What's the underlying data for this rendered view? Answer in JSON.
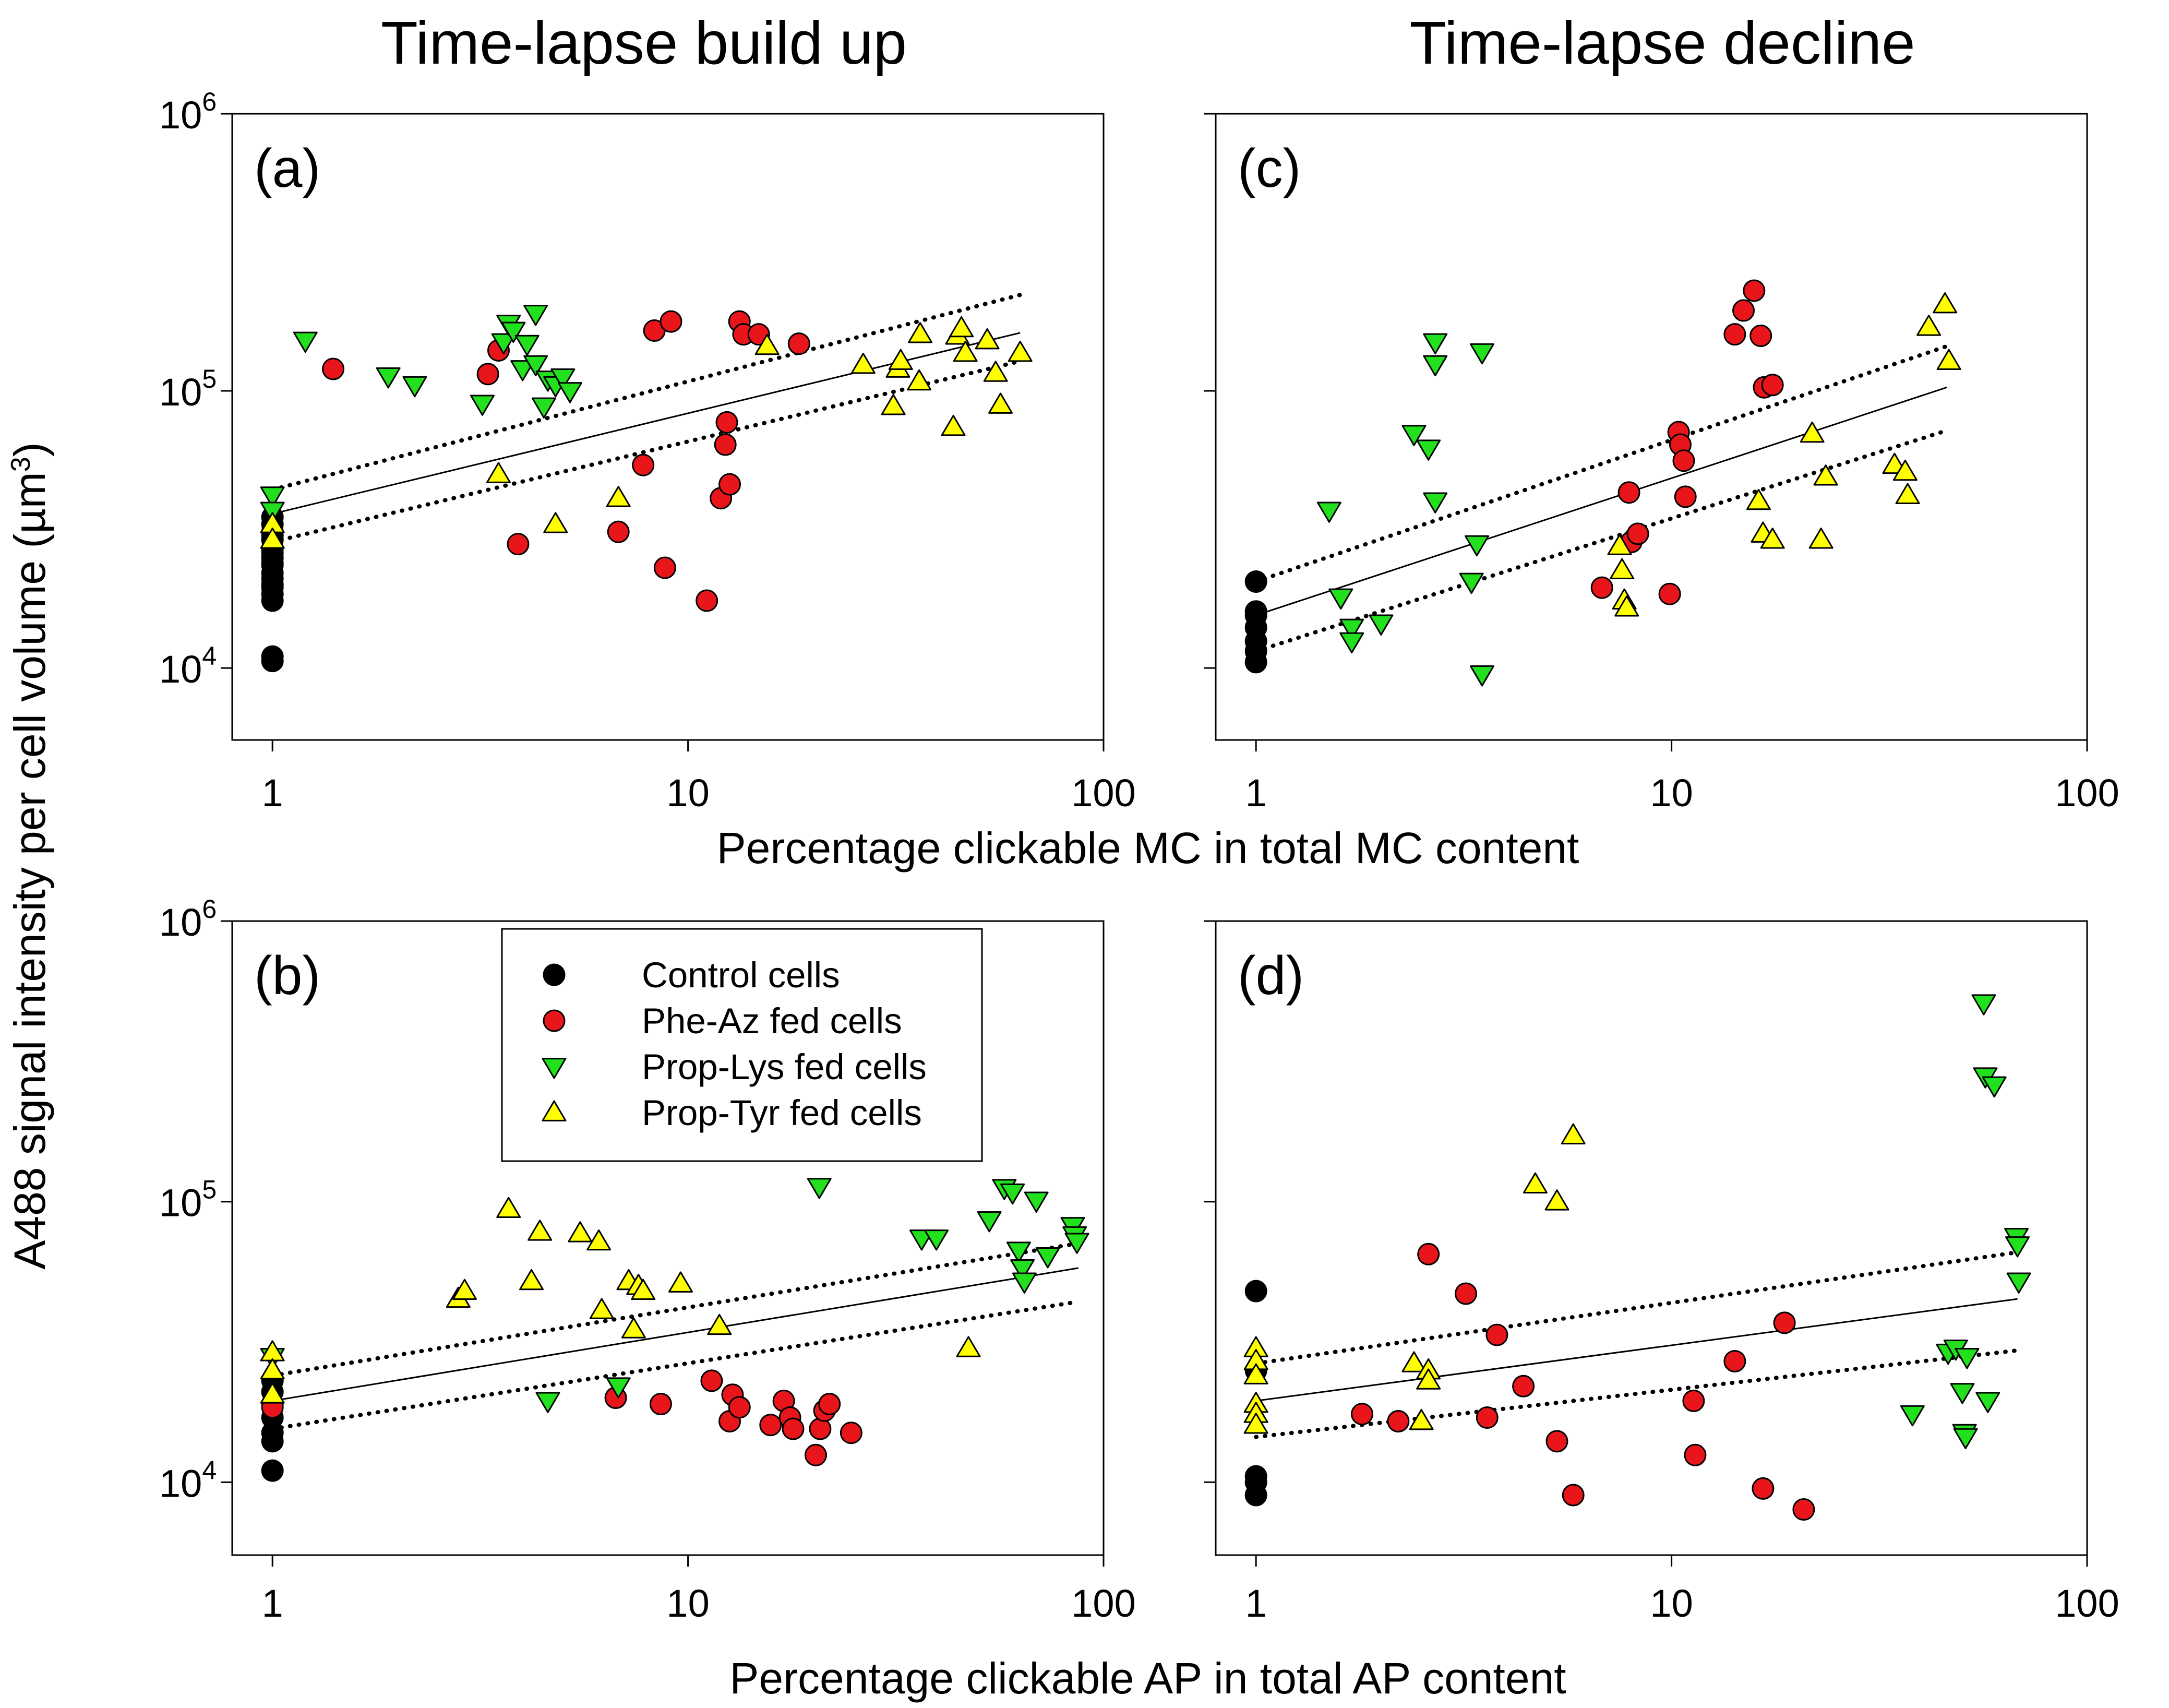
{
  "figure": {
    "column_titles": [
      "Time-lapse build up",
      "Time-lapse decline"
    ],
    "y_axis_label": "A488 signal intensity per cell volume (µm",
    "y_axis_label_sup": "3",
    "y_axis_label_end": ")",
    "x_axis_label_top": "Percentage clickable MC in total MC content",
    "x_axis_label_bottom": "Percentage clickable AP in total AP content",
    "x_tick_labels": [
      "1",
      "10",
      "100"
    ],
    "y_tick_bases": [
      "10",
      "10",
      "10"
    ],
    "y_tick_exponents": [
      "4",
      "5",
      "6"
    ]
  },
  "legend": {
    "items": [
      {
        "label": "Control cells",
        "color": "#000000",
        "marker": "circle"
      },
      {
        "label": "Phe-Az fed cells",
        "color": "#e8161b",
        "marker": "circle"
      },
      {
        "label": "Prop-Lys fed cells",
        "color": "#22e01d",
        "marker": "triangle-down"
      },
      {
        "label": "Prop-Tyr fed cells",
        "color": "#ffff00",
        "marker": "triangle-up"
      }
    ]
  },
  "chart_data": [
    {
      "panel": "(a)",
      "type": "scatter",
      "xscale": "log",
      "yscale": "log",
      "xlim": [
        0.8,
        100
      ],
      "ylim": [
        5500,
        1000000
      ],
      "fit": {
        "x": [
          1,
          63
        ],
        "y": [
          36000,
          162000
        ],
        "ci_low": [
          28500,
          128000
        ],
        "ci_high": [
          44000,
          222000
        ]
      },
      "series": [
        {
          "name": "Control cells",
          "x": [
            1,
            1,
            1,
            1,
            1,
            1,
            1,
            1,
            1,
            1,
            1,
            1,
            1,
            1,
            1,
            1,
            1,
            1
          ],
          "y": [
            11000,
            10600,
            17500,
            18500,
            19500,
            21000,
            22000,
            23500,
            25000,
            27000,
            29000,
            31000,
            33000,
            35000,
            20000,
            24000,
            26000,
            30000
          ]
        },
        {
          "name": "Phe-Az fed cells",
          "x": [
            1.4,
            3.3,
            3.5,
            3.9,
            7.8,
            6.8,
            8.3,
            8.8,
            9.1,
            11.1,
            12.0,
            12.3,
            12.4,
            12.6,
            13.3,
            13.6,
            14.8,
            18.5
          ],
          "y": [
            120000,
            115000,
            140000,
            28000,
            54000,
            31000,
            165000,
            23000,
            178000,
            17500,
            41000,
            64000,
            77000,
            46000,
            178000,
            160000,
            160000,
            148000
          ]
        },
        {
          "name": "Prop-Lys fed cells",
          "x": [
            1,
            1,
            1.2,
            1.9,
            2.2,
            3.2,
            3.6,
            3.7,
            4.0,
            4.3,
            4.3,
            4.5,
            4.6,
            4.8,
            5.0,
            5.2,
            3.8,
            4.1
          ],
          "y": [
            42000,
            37000,
            152000,
            113000,
            105000,
            90000,
            150000,
            175000,
            120000,
            190000,
            125000,
            88000,
            110000,
            105000,
            112000,
            100000,
            165000,
            148000
          ]
        },
        {
          "name": "Prop-Tyr fed cells",
          "x": [
            1,
            1,
            3.5,
            4.8,
            6.8,
            15.5,
            26.4,
            31.2,
            32.0,
            32.5,
            36.0,
            36.2,
            43.5,
            44.5,
            45.5,
            46.5,
            52.5,
            55.0,
            56.5,
            63.0
          ],
          "y": [
            33000,
            29000,
            50000,
            33000,
            41000,
            145000,
            124000,
            88000,
            120000,
            128000,
            108000,
            160000,
            74000,
            158000,
            168000,
            137000,
            152000,
            116000,
            89000,
            137000
          ]
        }
      ]
    },
    {
      "panel": "(b)",
      "type": "scatter",
      "xscale": "log",
      "yscale": "log",
      "xlim": [
        0.8,
        100
      ],
      "ylim": [
        5500,
        1000000
      ],
      "fit": {
        "x": [
          1,
          87
        ],
        "y": [
          19500,
          58000
        ],
        "ci_low": [
          15500,
          44000
        ],
        "ci_high": [
          24000,
          71000
        ]
      },
      "series": [
        {
          "name": "Control cells",
          "x": [
            1,
            1,
            1,
            1,
            1,
            1,
            1
          ],
          "y": [
            11000,
            14000,
            15000,
            17000,
            19000,
            21000,
            23000
          ]
        },
        {
          "name": "Phe-Az fed cells",
          "x": [
            1,
            6.7,
            8.6,
            11.4,
            12.6,
            12.8,
            13.3,
            15.8,
            17.0,
            17.6,
            17.9,
            20.3,
            20.8,
            21.3,
            21.9,
            24.7
          ],
          "y": [
            18500,
            20000,
            19000,
            23000,
            16500,
            20500,
            18500,
            16000,
            19500,
            17000,
            15500,
            12500,
            15500,
            18000,
            19000,
            15000
          ]
        },
        {
          "name": "Prop-Lys fed cells",
          "x": [
            1,
            4.6,
            6.8,
            20.7,
            36.5,
            39.6,
            53.1,
            57.7,
            60.4,
            62.5,
            63.8,
            64.5,
            68.9,
            73.4,
            84.3,
            85.2,
            86.3
          ],
          "y": [
            28000,
            19500,
            22000,
            113000,
            74000,
            74000,
            86000,
            112000,
            108000,
            67000,
            58000,
            52000,
            101000,
            64000,
            82000,
            76000,
            72000
          ]
        },
        {
          "name": "Prop-Tyr fed cells",
          "x": [
            1,
            1,
            1,
            2.8,
            2.9,
            3.7,
            4.2,
            4.4,
            5.5,
            6.1,
            6.2,
            7.2,
            7.4,
            7.6,
            7.8,
            9.6,
            11.9,
            47.3
          ],
          "y": [
            29000,
            25000,
            20500,
            45000,
            48000,
            94000,
            52000,
            78000,
            77000,
            72000,
            41000,
            52000,
            35000,
            50000,
            48000,
            51000,
            36000,
            30000
          ]
        }
      ]
    },
    {
      "panel": "(c)",
      "type": "scatter",
      "xscale": "log",
      "yscale": "log",
      "xlim": [
        0.8,
        100
      ],
      "ylim": [
        5500,
        1000000
      ],
      "fit": {
        "x": [
          1,
          46
        ],
        "y": [
          15500,
          103000
        ],
        "ci_low": [
          11500,
          72000
        ],
        "ci_high": [
          20500,
          145000
        ]
      },
      "series": [
        {
          "name": "Control cells",
          "x": [
            1,
            1,
            1,
            1,
            1,
            1,
            1
          ],
          "y": [
            10500,
            11500,
            12500,
            14000,
            15500,
            16000,
            20500
          ]
        },
        {
          "name": "Phe-Az fed cells",
          "x": [
            6.8,
            7.9,
            8.0,
            8.3,
            9.9,
            10.4,
            10.5,
            10.7,
            10.8,
            14.2,
            14.9,
            15.8,
            16.4,
            16.7,
            17.5
          ],
          "y": [
            19500,
            43000,
            28500,
            30500,
            18500,
            71000,
            64000,
            56000,
            41500,
            160000,
            195000,
            230000,
            158000,
            103000,
            105000
          ]
        },
        {
          "name": "Prop-Lys fed cells",
          "x": [
            1.5,
            1.6,
            1.7,
            1.7,
            2.0,
            2.4,
            2.6,
            2.7,
            2.7,
            2.7,
            3.5,
            3.3,
            3.4,
            3.5
          ],
          "y": [
            37000,
            18000,
            14000,
            12500,
            14500,
            70000,
            62000,
            40000,
            150000,
            125000,
            138000,
            20500,
            28000,
            9500
          ]
        },
        {
          "name": "Prop-Tyr fed cells",
          "x": [
            7.5,
            7.6,
            7.7,
            7.8,
            16.2,
            16.6,
            17.5,
            21.8,
            22.9,
            23.5,
            34.4,
            36.5,
            37.0,
            41.6,
            45.5,
            46.5
          ],
          "y": [
            27500,
            22500,
            17500,
            16500,
            40000,
            30500,
            29000,
            70000,
            29000,
            49000,
            54000,
            51000,
            42000,
            170000,
            205000,
            128000
          ]
        }
      ]
    },
    {
      "panel": "(d)",
      "type": "scatter",
      "xscale": "log",
      "yscale": "log",
      "xlim": [
        0.8,
        100
      ],
      "ylim": [
        5500,
        1000000
      ],
      "fit": {
        "x": [
          1,
          68
        ],
        "y": [
          19500,
          45000
        ],
        "ci_low": [
          14500,
          29500
        ],
        "ci_high": [
          26500,
          66000
        ]
      },
      "series": [
        {
          "name": "Control cells",
          "x": [
            1,
            1,
            1,
            1,
            1
          ],
          "y": [
            9000,
            10000,
            10500,
            48000,
            25000
          ]
        },
        {
          "name": "Phe-Az fed cells",
          "x": [
            1.8,
            2.2,
            2.6,
            3.2,
            3.6,
            3.8,
            4.4,
            5.3,
            5.8,
            11.3,
            11.4,
            14.2,
            16.6,
            18.7,
            20.8
          ],
          "y": [
            17500,
            16500,
            65000,
            47000,
            17000,
            33500,
            22000,
            14000,
            9000,
            19500,
            12500,
            27000,
            9500,
            37000,
            8000
          ]
        },
        {
          "name": "Prop-Lys fed cells",
          "x": [
            38.0,
            46.3,
            48.3,
            50.1,
            50.7,
            51.0,
            51.4,
            56.4,
            56.9,
            57.7,
            59.8,
            67.6,
            68.0,
            68.5
          ],
          "y": [
            17500,
            29000,
            30000,
            21000,
            15000,
            14500,
            28000,
            510000,
            280000,
            19500,
            260000,
            75000,
            70000,
            52000
          ]
        },
        {
          "name": "Prop-Tyr fed cells",
          "x": [
            1,
            1,
            1,
            1,
            1,
            1,
            2.4,
            2.5,
            2.6,
            2.6,
            4.7,
            5.3,
            5.8
          ],
          "y": [
            30000,
            27000,
            24000,
            19000,
            17500,
            16000,
            26500,
            16500,
            25000,
            23000,
            115000,
            100000,
            172000
          ]
        }
      ]
    }
  ]
}
